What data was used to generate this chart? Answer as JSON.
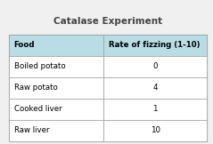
{
  "title": "Catalase Experiment",
  "col1_header": "Food",
  "col2_header": "Rate of fizzing (1-10)",
  "rows": [
    [
      "Boiled potato",
      "0"
    ],
    [
      "Raw potato",
      "4"
    ],
    [
      "Cooked liver",
      "1"
    ],
    [
      "Raw liver",
      "10"
    ]
  ],
  "header_bg": "#b8dde4",
  "row_bg": "#ffffff",
  "outer_bg": "#e8e8e8",
  "border_color": "#a0a0a0",
  "title_color": "#444444",
  "header_text_color": "#000000",
  "body_text_color": "#000000",
  "title_fontsize": 7.5,
  "header_fontsize": 6.2,
  "body_fontsize": 6.2,
  "fig_bg": "#f0f0f0",
  "col_split": 0.48
}
